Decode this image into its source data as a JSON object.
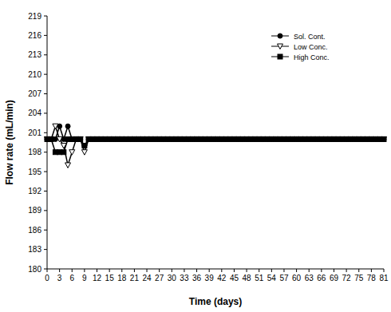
{
  "chart_data": {
    "type": "line",
    "x_label": "Time (days)",
    "y_label": "Flow rate (mL/min)",
    "x": [
      0,
      1,
      2,
      3,
      4,
      5,
      6,
      7,
      8,
      9,
      10,
      11,
      12,
      13,
      14,
      15,
      16,
      17,
      18,
      19,
      20,
      21,
      22,
      23,
      24,
      25,
      26,
      27,
      28,
      29,
      30,
      31,
      32,
      33,
      34,
      35,
      36,
      37,
      38,
      39,
      40,
      41,
      42,
      43,
      44,
      45,
      46,
      47,
      48,
      49,
      50,
      51,
      52,
      53,
      54,
      55,
      56,
      57,
      58,
      59,
      60,
      61,
      62,
      63,
      64,
      65,
      66,
      67,
      68,
      69,
      70,
      71,
      72,
      73,
      74,
      75,
      76,
      77,
      78,
      79,
      80,
      81
    ],
    "series": [
      {
        "name": "Sol. Cont.",
        "color": "#000000",
        "marker": "circle",
        "values": [
          200,
          200,
          200,
          202,
          200,
          202,
          200,
          200,
          200,
          199,
          200,
          200,
          200,
          200,
          200,
          200,
          200,
          200,
          200,
          200,
          200,
          200,
          200,
          200,
          200,
          200,
          200,
          200,
          200,
          200,
          200,
          200,
          200,
          200,
          200,
          200,
          200,
          200,
          200,
          200,
          200,
          200,
          200,
          200,
          200,
          200,
          200,
          200,
          200,
          200,
          200,
          200,
          200,
          200,
          200,
          200,
          200,
          200,
          200,
          200,
          200,
          200,
          200,
          200,
          200,
          200,
          200,
          200,
          200,
          200,
          200,
          200,
          200,
          200,
          200,
          200,
          200,
          200,
          200,
          200,
          200,
          200
        ]
      },
      {
        "name": "Low Conc.",
        "color": "#000000",
        "marker": "triangle-down-open",
        "values": [
          200,
          200,
          202,
          200,
          199,
          196,
          198,
          200,
          200,
          198,
          200,
          200,
          200,
          200,
          200,
          200,
          200,
          200,
          200,
          200,
          200,
          200,
          200,
          200,
          200,
          200,
          200,
          200,
          200,
          200,
          200,
          200,
          200,
          200,
          200,
          200,
          200,
          200,
          200,
          200,
          200,
          200,
          200,
          200,
          200,
          200,
          200,
          200,
          200,
          200,
          200,
          200,
          200,
          200,
          200,
          200,
          200,
          200,
          200,
          200,
          200,
          200,
          200,
          200,
          200,
          200,
          200,
          200,
          200,
          200,
          200,
          200,
          200,
          200,
          200,
          200,
          200,
          200,
          200,
          200,
          200,
          200
        ]
      },
      {
        "name": "High Conc.",
        "color": "#000000",
        "marker": "square",
        "values": [
          200,
          200,
          198,
          198,
          198,
          200,
          200,
          200,
          200,
          199,
          200,
          200,
          200,
          200,
          200,
          200,
          200,
          200,
          200,
          200,
          200,
          200,
          200,
          200,
          200,
          200,
          200,
          200,
          200,
          200,
          200,
          200,
          200,
          200,
          200,
          200,
          200,
          200,
          200,
          200,
          200,
          200,
          200,
          200,
          200,
          200,
          200,
          200,
          200,
          200,
          200,
          200,
          200,
          200,
          200,
          200,
          200,
          200,
          200,
          200,
          200,
          200,
          200,
          200,
          200,
          200,
          200,
          200,
          200,
          200,
          200,
          200,
          200,
          200,
          200,
          200,
          200,
          200,
          200,
          200,
          200,
          200
        ]
      }
    ],
    "xlim": [
      0,
      81
    ],
    "xticks": [
      0,
      3,
      6,
      9,
      12,
      15,
      18,
      21,
      24,
      27,
      30,
      33,
      36,
      39,
      42,
      45,
      48,
      51,
      54,
      57,
      60,
      63,
      66,
      69,
      72,
      75,
      78,
      81
    ],
    "ylim": [
      180,
      219
    ],
    "yticks": [
      180,
      183,
      186,
      189,
      192,
      195,
      198,
      201,
      204,
      207,
      210,
      213,
      216,
      219
    ],
    "grid": false,
    "legend": "top-right"
  }
}
